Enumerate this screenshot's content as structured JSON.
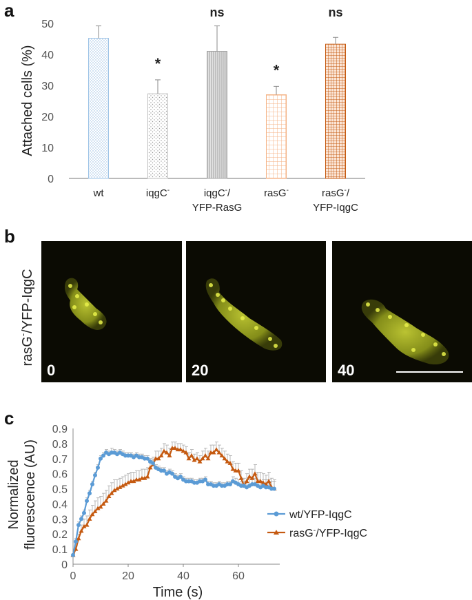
{
  "panels": {
    "a": "a",
    "b": "b",
    "c": "c"
  },
  "colors": {
    "blue": "#5b9bd5",
    "orange": "#c55a11",
    "gray": "#9e9e9e",
    "light_orange": "#f4b183"
  },
  "chart_data": [
    {
      "type": "bar",
      "ylabel": "Attached cells (%)",
      "ylim": [
        0,
        50
      ],
      "yticks": [
        0,
        10,
        20,
        30,
        40,
        50
      ],
      "categories": [
        {
          "lines": [
            "wt"
          ],
          "sup": ""
        },
        {
          "lines": [
            "iqgC"
          ],
          "sup": "-"
        },
        {
          "lines": [
            "iqgC-/",
            "YFP-RasG"
          ],
          "sup": ""
        },
        {
          "lines": [
            "rasG"
          ],
          "sup": "-"
        },
        {
          "lines": [
            "rasG-/",
            "YFP-IqgC"
          ],
          "sup": ""
        }
      ],
      "values": [
        45.2,
        27.3,
        41.0,
        27.0,
        43.3
      ],
      "errors": [
        4.0,
        4.5,
        8.2,
        2.7,
        2.2
      ],
      "significance": [
        "",
        "*",
        "ns",
        "*",
        "ns"
      ],
      "patterns": [
        "dots-blue",
        "dots-gray",
        "vlines-gray",
        "grid-light-orange",
        "grid-dark-orange"
      ],
      "grid": false
    },
    {
      "type": "line",
      "ylabel_lines": [
        "Normalized",
        "fluorescence (AU)"
      ],
      "xlabel": "Time (s)",
      "xlim": [
        0,
        75
      ],
      "ylim": [
        0,
        0.9
      ],
      "xticks": [
        0,
        20,
        40,
        60
      ],
      "yticks": [
        "0",
        "0.1",
        "0.2",
        "0.3",
        "0.4",
        "0.5",
        "0.6",
        "0.7",
        "0.8",
        "0.9"
      ],
      "legend_position": "right",
      "series": [
        {
          "name": "wt/YFP-IqgC",
          "marker": "circle",
          "x": [
            0,
            1,
            2,
            3,
            4,
            5,
            6,
            7,
            8,
            9,
            10,
            11,
            12,
            13,
            14,
            15,
            16,
            17,
            18,
            19,
            20,
            21,
            22,
            23,
            24,
            25,
            26,
            27,
            28,
            29,
            30,
            31,
            32,
            33,
            34,
            35,
            36,
            37,
            38,
            39,
            40,
            41,
            42,
            43,
            44,
            45,
            46,
            47,
            48,
            49,
            50,
            51,
            52,
            53,
            54,
            55,
            56,
            57,
            58,
            59,
            60,
            61,
            62,
            63,
            64,
            65,
            66,
            67,
            68,
            69,
            70,
            71,
            72,
            73
          ],
          "y": [
            0.06,
            0.15,
            0.26,
            0.3,
            0.34,
            0.42,
            0.47,
            0.53,
            0.59,
            0.64,
            0.7,
            0.72,
            0.74,
            0.73,
            0.74,
            0.74,
            0.73,
            0.74,
            0.73,
            0.72,
            0.72,
            0.72,
            0.71,
            0.72,
            0.71,
            0.71,
            0.7,
            0.7,
            0.68,
            0.67,
            0.64,
            0.63,
            0.62,
            0.62,
            0.6,
            0.61,
            0.6,
            0.58,
            0.57,
            0.58,
            0.56,
            0.55,
            0.55,
            0.55,
            0.54,
            0.54,
            0.55,
            0.55,
            0.56,
            0.53,
            0.53,
            0.52,
            0.52,
            0.53,
            0.52,
            0.52,
            0.53,
            0.53,
            0.55,
            0.54,
            0.53,
            0.52,
            0.52,
            0.51,
            0.52,
            0.53,
            0.53,
            0.52,
            0.51,
            0.52,
            0.51,
            0.51,
            0.5,
            0.5
          ],
          "err": [
            0.01,
            0.02,
            0.02,
            0.02,
            0.02,
            0.02,
            0.02,
            0.02,
            0.02,
            0.02,
            0.02,
            0.02,
            0.02,
            0.02,
            0.03,
            0.02,
            0.02,
            0.02,
            0.02,
            0.02,
            0.02,
            0.02,
            0.02,
            0.02,
            0.02,
            0.02,
            0.02,
            0.02,
            0.02,
            0.02,
            0.02,
            0.02,
            0.02,
            0.02,
            0.02,
            0.02,
            0.02,
            0.02,
            0.02,
            0.02,
            0.02,
            0.02,
            0.02,
            0.02,
            0.02,
            0.02,
            0.02,
            0.02,
            0.02,
            0.02,
            0.02,
            0.02,
            0.02,
            0.02,
            0.02,
            0.02,
            0.02,
            0.02,
            0.03,
            0.03,
            0.03,
            0.03,
            0.03,
            0.03,
            0.04,
            0.04,
            0.04,
            0.04,
            0.04,
            0.04,
            0.05,
            0.05,
            0.05,
            0.05
          ]
        },
        {
          "name": "rasG-/YFP-IqgC",
          "marker": "triangle",
          "x": [
            0,
            1,
            2,
            3,
            4,
            5,
            6,
            7,
            8,
            9,
            10,
            11,
            12,
            13,
            14,
            15,
            16,
            17,
            18,
            19,
            20,
            21,
            22,
            23,
            24,
            25,
            26,
            27,
            28,
            29,
            30,
            31,
            32,
            33,
            34,
            35,
            36,
            37,
            38,
            39,
            40,
            41,
            42,
            43,
            44,
            45,
            46,
            47,
            48,
            49,
            50,
            51,
            52,
            53,
            54,
            55,
            56,
            57,
            58,
            59,
            60,
            61,
            62,
            63,
            64,
            65,
            66,
            67,
            68,
            69,
            70,
            71,
            72,
            73
          ],
          "y": [
            0.06,
            0.1,
            0.17,
            0.22,
            0.25,
            0.26,
            0.3,
            0.33,
            0.35,
            0.37,
            0.38,
            0.4,
            0.42,
            0.45,
            0.47,
            0.49,
            0.5,
            0.51,
            0.52,
            0.53,
            0.54,
            0.55,
            0.55,
            0.56,
            0.56,
            0.57,
            0.57,
            0.58,
            0.64,
            0.66,
            0.7,
            0.7,
            0.72,
            0.75,
            0.74,
            0.72,
            0.77,
            0.77,
            0.76,
            0.76,
            0.75,
            0.74,
            0.7,
            0.72,
            0.69,
            0.7,
            0.68,
            0.7,
            0.72,
            0.7,
            0.74,
            0.74,
            0.76,
            0.74,
            0.72,
            0.7,
            0.68,
            0.67,
            0.63,
            0.62,
            0.62,
            0.57,
            0.52,
            0.55,
            0.58,
            0.57,
            0.6,
            0.55,
            0.55,
            0.54,
            0.53,
            0.55,
            0.51,
            0.5
          ],
          "err": [
            0.01,
            0.02,
            0.03,
            0.04,
            0.05,
            0.06,
            0.06,
            0.06,
            0.07,
            0.07,
            0.07,
            0.07,
            0.07,
            0.07,
            0.07,
            0.07,
            0.06,
            0.06,
            0.06,
            0.06,
            0.06,
            0.06,
            0.06,
            0.06,
            0.06,
            0.06,
            0.06,
            0.06,
            0.05,
            0.05,
            0.05,
            0.05,
            0.05,
            0.05,
            0.05,
            0.05,
            0.04,
            0.04,
            0.04,
            0.04,
            0.04,
            0.04,
            0.04,
            0.04,
            0.04,
            0.04,
            0.04,
            0.05,
            0.05,
            0.05,
            0.05,
            0.05,
            0.05,
            0.05,
            0.05,
            0.05,
            0.05,
            0.05,
            0.05,
            0.05,
            0.05,
            0.05,
            0.05,
            0.05,
            0.05,
            0.06,
            0.06,
            0.06,
            0.06,
            0.06,
            0.06,
            0.06,
            0.06,
            0.06
          ]
        }
      ]
    }
  ],
  "micrographs": {
    "row_label": "rasG-/YFP-IqgC",
    "row_label_main": "rasG",
    "row_label_sup": "-",
    "row_label_rest": "/YFP-IqgC",
    "timestamps": [
      "0",
      "20",
      "40"
    ],
    "background": "#0b0b03",
    "cell_color": "#b8c42a"
  }
}
